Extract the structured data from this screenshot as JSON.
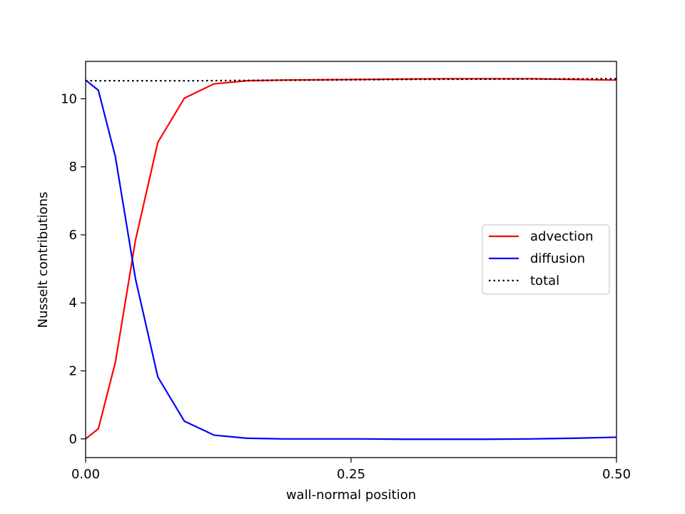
{
  "chart_data": {
    "type": "line",
    "title": "",
    "xlabel": "wall-normal position",
    "ylabel": "Nusselt contributions",
    "xlim": [
      0.0,
      0.5
    ],
    "ylim": [
      -0.55,
      11.1
    ],
    "x_ticks": [
      0.0,
      0.25,
      0.5
    ],
    "x_tick_labels": [
      "0.00",
      "0.25",
      "0.50"
    ],
    "y_ticks": [
      0,
      2,
      4,
      6,
      8,
      10
    ],
    "y_tick_labels": [
      "0",
      "2",
      "4",
      "6",
      "8",
      "10"
    ],
    "grid": false,
    "legend_position": "center-right",
    "series": [
      {
        "name": "advection",
        "color": "#ff0000",
        "style": "solid",
        "x": [
          0.0,
          0.012,
          0.028,
          0.047,
          0.068,
          0.093,
          0.121,
          0.152,
          0.186,
          0.222,
          0.26,
          0.299,
          0.339,
          0.379,
          0.419,
          0.46,
          0.5
        ],
        "y": [
          0.0,
          0.3,
          2.25,
          5.85,
          8.72,
          10.02,
          10.44,
          10.53,
          10.55,
          10.56,
          10.57,
          10.58,
          10.59,
          10.59,
          10.59,
          10.57,
          10.55
        ]
      },
      {
        "name": "diffusion",
        "color": "#0000ff",
        "style": "solid",
        "x": [
          0.0,
          0.012,
          0.028,
          0.047,
          0.068,
          0.093,
          0.121,
          0.152,
          0.186,
          0.222,
          0.26,
          0.299,
          0.339,
          0.379,
          0.419,
          0.46,
          0.5
        ],
        "y": [
          10.55,
          10.25,
          8.3,
          4.7,
          1.82,
          0.52,
          0.11,
          0.02,
          0.0,
          0.0,
          0.0,
          -0.01,
          -0.01,
          -0.01,
          0.0,
          0.02,
          0.05
        ]
      },
      {
        "name": "total",
        "color": "#000000",
        "style": "dotted",
        "x": [
          0.0,
          0.1,
          0.2,
          0.3,
          0.4,
          0.5
        ],
        "y": [
          10.53,
          10.53,
          10.55,
          10.57,
          10.58,
          10.59
        ]
      }
    ]
  }
}
